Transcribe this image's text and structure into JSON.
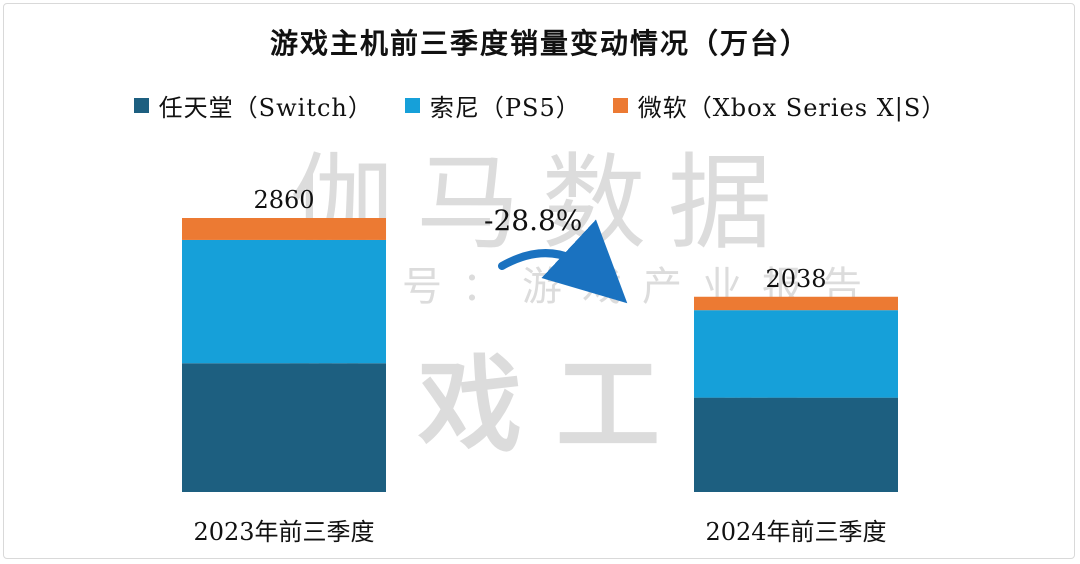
{
  "title": "游戏主机前三季度销量变动情况（万台）",
  "watermark": {
    "line1": "伽马数据",
    "line2": "微信号：游戏产业报告",
    "line3": "游戏工委"
  },
  "change_label": "-28.8%",
  "chart_data": {
    "type": "bar",
    "stacked": true,
    "title": "游戏主机前三季度销量变动情况（万台）",
    "categories": [
      "2023年前三季度",
      "2024年前三季度"
    ],
    "series": [
      {
        "name": "任天堂（Switch）",
        "color": "#1d5f80",
        "values": [
          1344,
          985
        ]
      },
      {
        "name": "索尼（PS5）",
        "color": "#16a0d9",
        "values": [
          1287,
          913
        ]
      },
      {
        "name": "微软（Xbox Series X|S）",
        "color": "#ec7a33",
        "values": [
          229,
          140
        ]
      }
    ],
    "totals": [
      2860,
      2038
    ],
    "total_labels": [
      "2860",
      "2038"
    ],
    "ylim": [
      0,
      2860
    ],
    "grid": false,
    "legend_position": "top",
    "xlabel": "",
    "ylabel": ""
  }
}
